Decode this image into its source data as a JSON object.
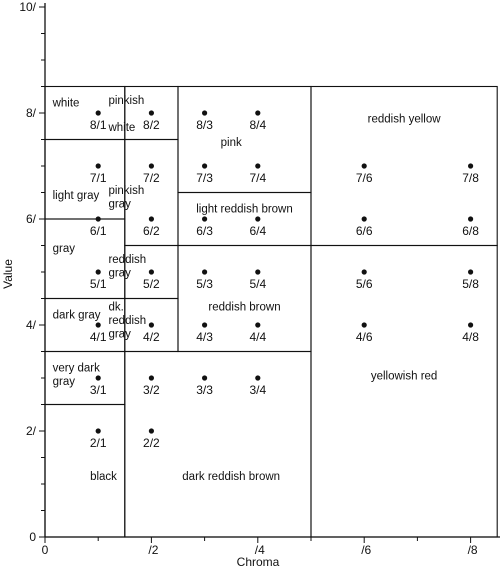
{
  "chart_data": {
    "type": "scatter",
    "xlabel": "Chroma",
    "ylabel": "Value",
    "xlim": [
      0,
      8.5
    ],
    "ylim": [
      0,
      10
    ],
    "x_ticks": [
      {
        "value": 0,
        "label": "0"
      },
      {
        "value": 2,
        "label": "/2"
      },
      {
        "value": 4,
        "label": "/4"
      },
      {
        "value": 6,
        "label": "/6"
      },
      {
        "value": 8,
        "label": "/8"
      }
    ],
    "y_ticks": [
      {
        "value": 0,
        "label": "0"
      },
      {
        "value": 2,
        "label": "2/"
      },
      {
        "value": 4,
        "label": "4/"
      },
      {
        "value": 6,
        "label": "6/"
      },
      {
        "value": 8,
        "label": "8/"
      },
      {
        "value": 10,
        "label": "10/"
      }
    ],
    "points": [
      {
        "x": 1,
        "y": 8,
        "label": "8/1"
      },
      {
        "x": 2,
        "y": 8,
        "label": "8/2"
      },
      {
        "x": 3,
        "y": 8,
        "label": "8/3"
      },
      {
        "x": 4,
        "y": 8,
        "label": "8/4"
      },
      {
        "x": 1,
        "y": 7,
        "label": "7/1"
      },
      {
        "x": 2,
        "y": 7,
        "label": "7/2"
      },
      {
        "x": 3,
        "y": 7,
        "label": "7/3"
      },
      {
        "x": 4,
        "y": 7,
        "label": "7/4"
      },
      {
        "x": 6,
        "y": 7,
        "label": "7/6"
      },
      {
        "x": 8,
        "y": 7,
        "label": "7/8"
      },
      {
        "x": 1,
        "y": 6,
        "label": "6/1"
      },
      {
        "x": 2,
        "y": 6,
        "label": "6/2"
      },
      {
        "x": 3,
        "y": 6,
        "label": "6/3"
      },
      {
        "x": 4,
        "y": 6,
        "label": "6/4"
      },
      {
        "x": 6,
        "y": 6,
        "label": "6/6"
      },
      {
        "x": 8,
        "y": 6,
        "label": "6/8"
      },
      {
        "x": 1,
        "y": 5,
        "label": "5/1"
      },
      {
        "x": 2,
        "y": 5,
        "label": "5/2"
      },
      {
        "x": 3,
        "y": 5,
        "label": "5/3"
      },
      {
        "x": 4,
        "y": 5,
        "label": "5/4"
      },
      {
        "x": 6,
        "y": 5,
        "label": "5/6"
      },
      {
        "x": 8,
        "y": 5,
        "label": "5/8"
      },
      {
        "x": 1,
        "y": 4,
        "label": "4/1"
      },
      {
        "x": 2,
        "y": 4,
        "label": "4/2"
      },
      {
        "x": 3,
        "y": 4,
        "label": "4/3"
      },
      {
        "x": 4,
        "y": 4,
        "label": "4/4"
      },
      {
        "x": 6,
        "y": 4,
        "label": "4/6"
      },
      {
        "x": 8,
        "y": 4,
        "label": "4/8"
      },
      {
        "x": 1,
        "y": 3,
        "label": "3/1"
      },
      {
        "x": 2,
        "y": 3,
        "label": "3/2"
      },
      {
        "x": 3,
        "y": 3,
        "label": "3/3"
      },
      {
        "x": 4,
        "y": 3,
        "label": "3/4"
      },
      {
        "x": 1,
        "y": 2,
        "label": "2/1"
      },
      {
        "x": 2,
        "y": 2,
        "label": "2/2"
      }
    ],
    "regions": [
      {
        "name": "white",
        "chroma": [
          0,
          1.5
        ],
        "value": [
          7.5,
          8.5
        ]
      },
      {
        "name": "pinkish white",
        "chroma": [
          1.5,
          2.5
        ],
        "value": [
          7.5,
          8.5
        ]
      },
      {
        "name": "pink",
        "chroma": [
          2.5,
          5
        ],
        "value": [
          6.5,
          8.5
        ]
      },
      {
        "name": "reddish yellow",
        "chroma": [
          5,
          8.5
        ],
        "value": [
          5.5,
          8.5
        ]
      },
      {
        "name": "light gray",
        "chroma": [
          0,
          1.5
        ],
        "value": [
          6,
          7.5
        ]
      },
      {
        "name": "pinkish gray",
        "chroma": [
          1.5,
          2.5
        ],
        "value": [
          5.5,
          7.5
        ]
      },
      {
        "name": "light reddish brown",
        "chroma": [
          2.5,
          5
        ],
        "value": [
          5.5,
          6.5
        ]
      },
      {
        "name": "gray",
        "chroma": [
          0,
          1.5
        ],
        "value": [
          4.5,
          6
        ]
      },
      {
        "name": "reddish gray",
        "chroma": [
          1.5,
          2.5
        ],
        "value": [
          4.5,
          5.5
        ]
      },
      {
        "name": "dark gray",
        "chroma": [
          0,
          1.5
        ],
        "value": [
          3.5,
          4.5
        ]
      },
      {
        "name": "dark reddish gray",
        "chroma": [
          1.5,
          2.5
        ],
        "value": [
          3.5,
          4.5
        ]
      },
      {
        "name": "reddish brown",
        "chroma": [
          2.5,
          5
        ],
        "value": [
          3.5,
          5.5
        ]
      },
      {
        "name": "yellowish red",
        "chroma": [
          5,
          8.5
        ],
        "value": [
          0,
          5.5
        ]
      },
      {
        "name": "very dark gray",
        "chroma": [
          0,
          1.5
        ],
        "value": [
          2.5,
          3.5
        ]
      },
      {
        "name": "black",
        "chroma": [
          0,
          1.5
        ],
        "value": [
          0,
          2.5
        ]
      },
      {
        "name": "dark reddish brown",
        "chroma": [
          1.5,
          5
        ],
        "value": [
          0,
          3.5
        ]
      }
    ],
    "region_labels": [
      {
        "name": "white",
        "lines": [
          "white"
        ],
        "at": [
          0.5,
          8.2
        ],
        "anchor": "start"
      },
      {
        "name": "pinkish white",
        "lines": [
          "pinkish",
          "",
          "white"
        ],
        "at": [
          1.55,
          8.25
        ],
        "anchor": "start"
      },
      {
        "name": "pink",
        "lines": [
          "pink"
        ],
        "at": [
          3.5,
          7.45
        ],
        "anchor": "middle"
      },
      {
        "name": "reddish yellow",
        "lines": [
          "reddish yellow"
        ],
        "at": [
          6.75,
          7.9
        ],
        "anchor": "middle"
      },
      {
        "name": "light gray",
        "lines": [
          "light gray"
        ],
        "at": [
          0.5,
          6.45
        ],
        "anchor": "start"
      },
      {
        "name": "pinkish gray",
        "lines": [
          "pinkish",
          "gray"
        ],
        "at": [
          1.55,
          6.55
        ],
        "anchor": "start"
      },
      {
        "name": "light reddish brown",
        "lines": [
          "light reddish brown"
        ],
        "at": [
          3.75,
          6.2
        ],
        "anchor": "middle"
      },
      {
        "name": "gray",
        "lines": [
          "gray"
        ],
        "at": [
          0.5,
          5.45
        ],
        "anchor": "start"
      },
      {
        "name": "reddish gray",
        "lines": [
          "reddish",
          "gray"
        ],
        "at": [
          1.55,
          5.25
        ],
        "anchor": "start"
      },
      {
        "name": "dark gray",
        "lines": [
          "dark gray"
        ],
        "at": [
          0.5,
          4.2
        ],
        "anchor": "start"
      },
      {
        "name": "dark reddish gray",
        "lines": [
          "dk.",
          "reddish",
          "gray"
        ],
        "at": [
          1.55,
          4.35
        ],
        "anchor": "start"
      },
      {
        "name": "reddish brown",
        "lines": [
          "reddish brown"
        ],
        "at": [
          3.75,
          4.35
        ],
        "anchor": "middle"
      },
      {
        "name": "yellowish red",
        "lines": [
          "yellowish red"
        ],
        "at": [
          6.75,
          3.05
        ],
        "anchor": "middle"
      },
      {
        "name": "very dark gray",
        "lines": [
          "very dark",
          "gray"
        ],
        "at": [
          0.5,
          3.2
        ],
        "anchor": "start"
      },
      {
        "name": "black",
        "lines": [
          "black"
        ],
        "at": [
          1.1,
          1.15
        ],
        "anchor": "middle"
      },
      {
        "name": "dark reddish brown",
        "lines": [
          "dark reddish brown"
        ],
        "at": [
          3.5,
          1.15
        ],
        "anchor": "middle"
      }
    ],
    "grid": false
  }
}
